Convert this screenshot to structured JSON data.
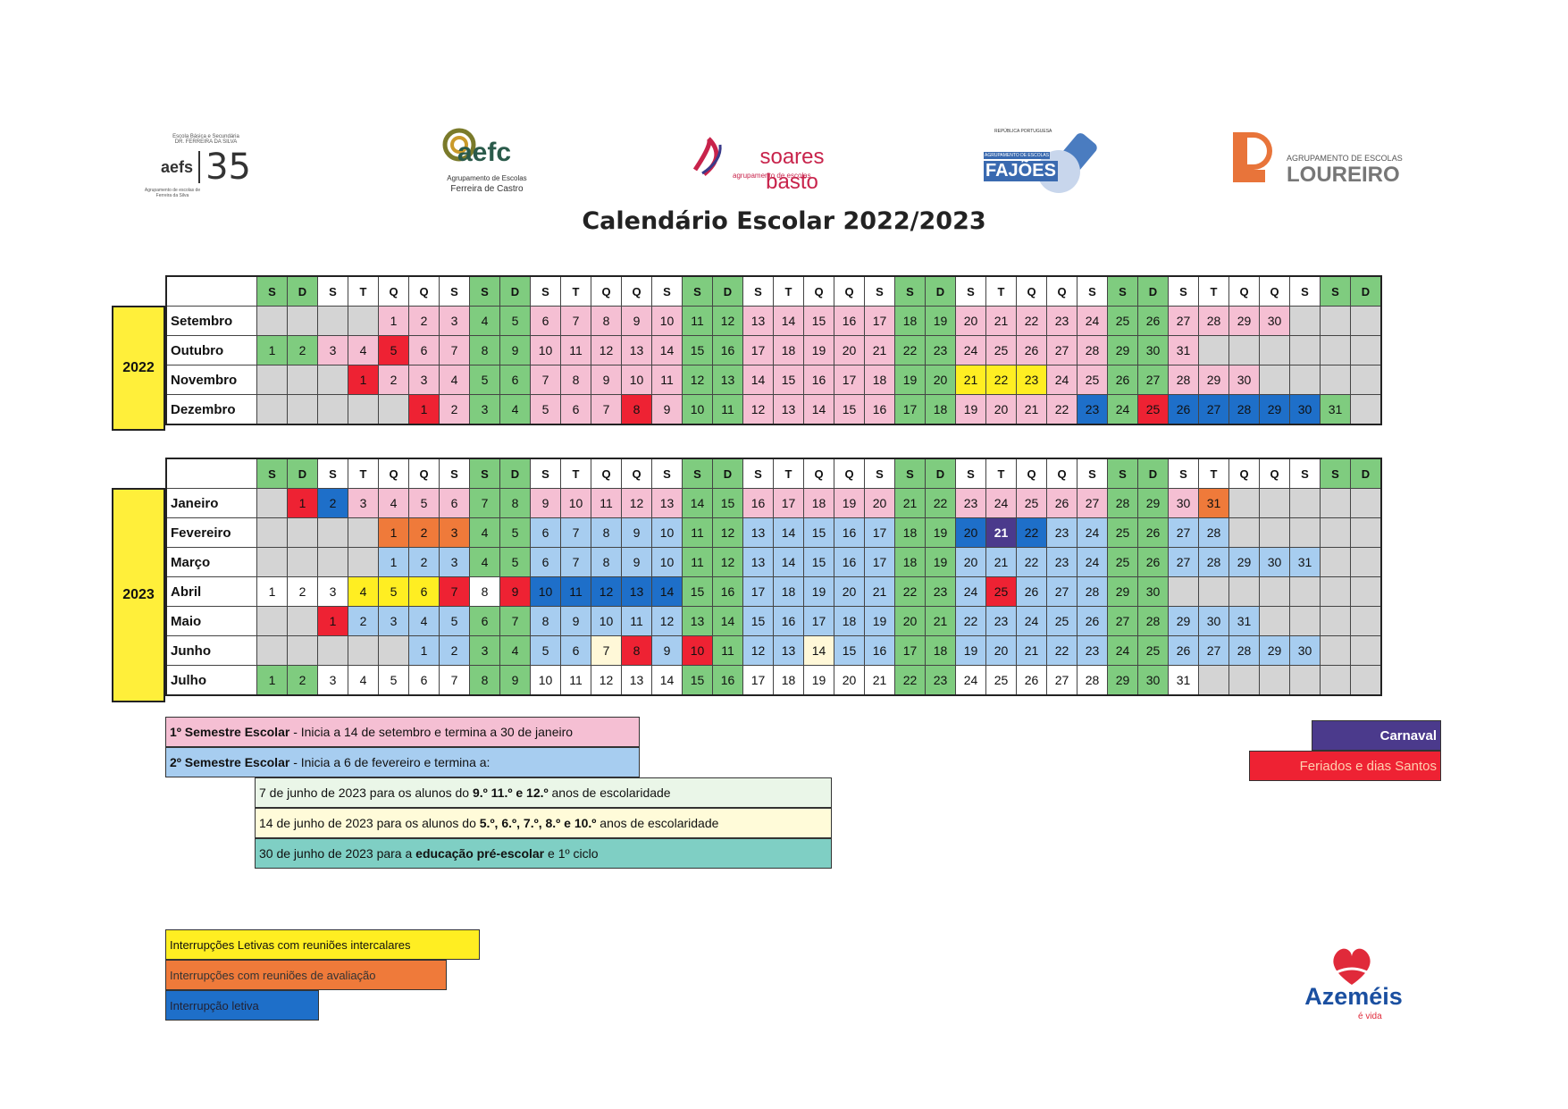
{
  "title": "Calendário Escolar  2022/2023",
  "logos": [
    {
      "name": "aefs",
      "line1": "Escola Básica e Secundária",
      "line2": "DR. FERREIRA DA SILVA",
      "mark": "aefs",
      "number": "35",
      "sub": "Agrupamento de escolas de Ferreira da Silva"
    },
    {
      "name": "aefc",
      "mark": "aefc",
      "sub1": "Agrupamento de Escolas",
      "sub2": "Ferreira de Castro"
    },
    {
      "name": "soares-basto",
      "mark": "soares basto",
      "sub": "agrupamento de escolas"
    },
    {
      "name": "fajoes",
      "top": "REPÚBLICA PORTUGUESA",
      "mark": "FAJÕES",
      "sub": "AGRUPAMENTO DE ESCOLAS"
    },
    {
      "name": "loureiro",
      "sub": "AGRUPAMENTO DE ESCOLAS",
      "mark": "LOUREIRO"
    }
  ],
  "colors": {
    "pink": "#f5bfd3",
    "green": "#7fcc7f",
    "grey": "#d4d4d4",
    "white": "#ffffff",
    "red": "#ee2233",
    "yellow": "#ffee22",
    "orange": "#ef7a3a",
    "blue": "#1e6fc9",
    "lightblue": "#a7cdf0",
    "purple": "#4b3a8c",
    "cream": "#fff8d8",
    "paleyellow": "#fffde0",
    "teal": "#7fcfc4",
    "lightgreen": "#e8f5e6"
  },
  "weekday_header": [
    "S",
    "D",
    "S",
    "T",
    "Q",
    "Q",
    "S",
    "S",
    "D",
    "S",
    "T",
    "Q",
    "Q",
    "S",
    "S",
    "D",
    "S",
    "T",
    "Q",
    "Q",
    "S",
    "S",
    "D",
    "S",
    "T",
    "Q",
    "Q",
    "S",
    "S",
    "D",
    "S",
    "T",
    "Q",
    "Q",
    "S",
    "S",
    "D"
  ],
  "blocks": [
    {
      "year": "2022",
      "months": [
        {
          "name": "Setembro",
          "start": 4,
          "days": 30,
          "code": "p",
          "over": {}
        },
        {
          "name": "Outubro",
          "start": 0,
          "days": 31,
          "code": "p",
          "over": {
            "5": "r"
          }
        },
        {
          "name": "Novembro",
          "start": 3,
          "days": 30,
          "code": "p",
          "over": {
            "1": "r",
            "21": "y",
            "22": "y",
            "23": "y"
          }
        },
        {
          "name": "Dezembro",
          "start": 5,
          "days": 31,
          "code": "p",
          "over": {
            "1": "r",
            "8": "r",
            "23": "b",
            "25": "r",
            "26": "b",
            "27": "b",
            "28": "b",
            "29": "b",
            "30": "b"
          }
        }
      ]
    },
    {
      "year": "2023",
      "months": [
        {
          "name": "Janeiro",
          "start": 1,
          "days": 31,
          "code": "p",
          "over": {
            "1": "r",
            "2": "b",
            "31": "o"
          }
        },
        {
          "name": "Fevereiro",
          "start": 4,
          "days": 28,
          "code": "lb",
          "over": {
            "1": "o",
            "2": "o",
            "3": "o",
            "20": "b",
            "21": "pu",
            "22": "b"
          }
        },
        {
          "name": "Março",
          "start": 4,
          "days": 31,
          "code": "lb",
          "over": {}
        },
        {
          "name": "Abril",
          "start": 0,
          "days": 30,
          "code": "lb",
          "over": {
            "1": "w",
            "2": "w",
            "3": "w",
            "4": "y",
            "5": "y",
            "6": "y",
            "7": "r",
            "8": "w",
            "9": "r",
            "10": "b",
            "11": "b",
            "12": "b",
            "13": "b",
            "14": "b",
            "25": "r"
          }
        },
        {
          "name": "Maio",
          "start": 2,
          "days": 31,
          "code": "lb",
          "over": {
            "1": "r"
          }
        },
        {
          "name": "Junho",
          "start": 5,
          "days": 30,
          "code": "lb",
          "over": {
            "7": "cr",
            "8": "r",
            "10": "r",
            "14": "cr"
          }
        },
        {
          "name": "Julho",
          "start": 0,
          "days": 31,
          "code": "w",
          "over": {}
        }
      ]
    }
  ],
  "semesters": {
    "first_bold": "1º Semestre Escolar",
    "first_rest": " - Inicia a 14 de setembro e termina a 30 de janeiro",
    "second_bold": "2º Semestre Escolar",
    "second_rest": " - Inicia a 6 de fevereiro e termina a:",
    "end1_pre": "7 de junho de 2023 para os alunos do ",
    "end1_bold": "9.º 11.º e 12.º",
    "end1_post": " anos de escolaridade",
    "end2_pre": "14 de junho de 2023 para os alunos do ",
    "end2_bold": "5.º, 6.º, 7.º, 8.º e 10.º",
    "end2_post": " anos de escolaridade",
    "end3_pre": "30 de junho de 2023 para a ",
    "end3_bold": "educação pré-escolar",
    "end3_post": " e 1º ciclo"
  },
  "legend": {
    "carnaval": "Carnaval",
    "feriados": "Feriados e dias Santos",
    "intercalares": "Interrupções Letivas com reuniões intercalares",
    "avaliacao": "Interrupções com reuniões de avaliação",
    "letiva": "Interrupção letiva"
  },
  "footer_logo": {
    "name": "Azeméis",
    "tagline": "é vida"
  }
}
